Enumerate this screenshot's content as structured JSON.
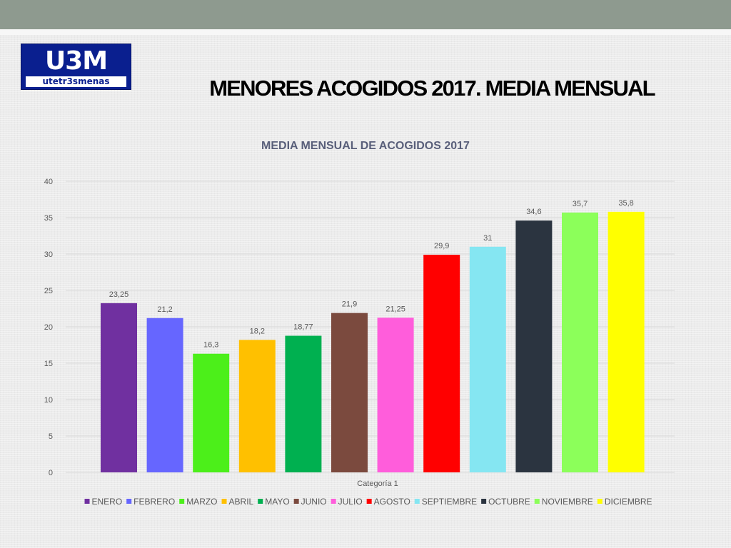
{
  "slide": {
    "title": "MENORES ACOGIDOS 2017. MEDIA MENSUAL",
    "logo": {
      "mark": "U3M",
      "text": "utetr3smenas"
    }
  },
  "colors": {
    "top_bar": "#8e9a8f",
    "logo_bg": "#0a1f8f",
    "gridline": "#d9d9d9",
    "axis_text": "#595959",
    "chart_title": "#595f7a"
  },
  "chart_data": {
    "type": "bar",
    "title": "MEDIA MENSUAL DE ACOGIDOS 2017",
    "categories": [
      "Categoría 1"
    ],
    "ylim": [
      0,
      40
    ],
    "yticks": [
      0,
      5,
      10,
      15,
      20,
      25,
      30,
      35,
      40
    ],
    "grid": true,
    "legend_position": "bottom",
    "series": [
      {
        "name": "ENERO",
        "value": 23.25,
        "label": "23,25",
        "color": "#7030a0"
      },
      {
        "name": "FEBRERO",
        "value": 21.2,
        "label": "21,2",
        "color": "#6666ff"
      },
      {
        "name": "MARZO",
        "value": 16.3,
        "label": "16,3",
        "color": "#4cef1a"
      },
      {
        "name": "ABRIL",
        "value": 18.2,
        "label": "18,2",
        "color": "#ffc000"
      },
      {
        "name": "MAYO",
        "value": 18.77,
        "label": "18,77",
        "color": "#00b050"
      },
      {
        "name": "JUNIO",
        "value": 21.9,
        "label": "21,9",
        "color": "#7b4a3e"
      },
      {
        "name": "JULIO",
        "value": 21.25,
        "label": "21,25",
        "color": "#ff5ddb"
      },
      {
        "name": "AGOSTO",
        "value": 29.9,
        "label": "29,9",
        "color": "#ff0000"
      },
      {
        "name": "SEPTIEMBRE",
        "value": 31,
        "label": "31",
        "color": "#85e6f2"
      },
      {
        "name": "OCTUBRE",
        "value": 34.6,
        "label": "34,6",
        "color": "#2b3440"
      },
      {
        "name": "NOVIEMBRE",
        "value": 35.7,
        "label": "35,7",
        "color": "#8cff5a"
      },
      {
        "name": "DICIEMBRE",
        "value": 35.8,
        "label": "35,8",
        "color": "#ffff00"
      }
    ]
  }
}
